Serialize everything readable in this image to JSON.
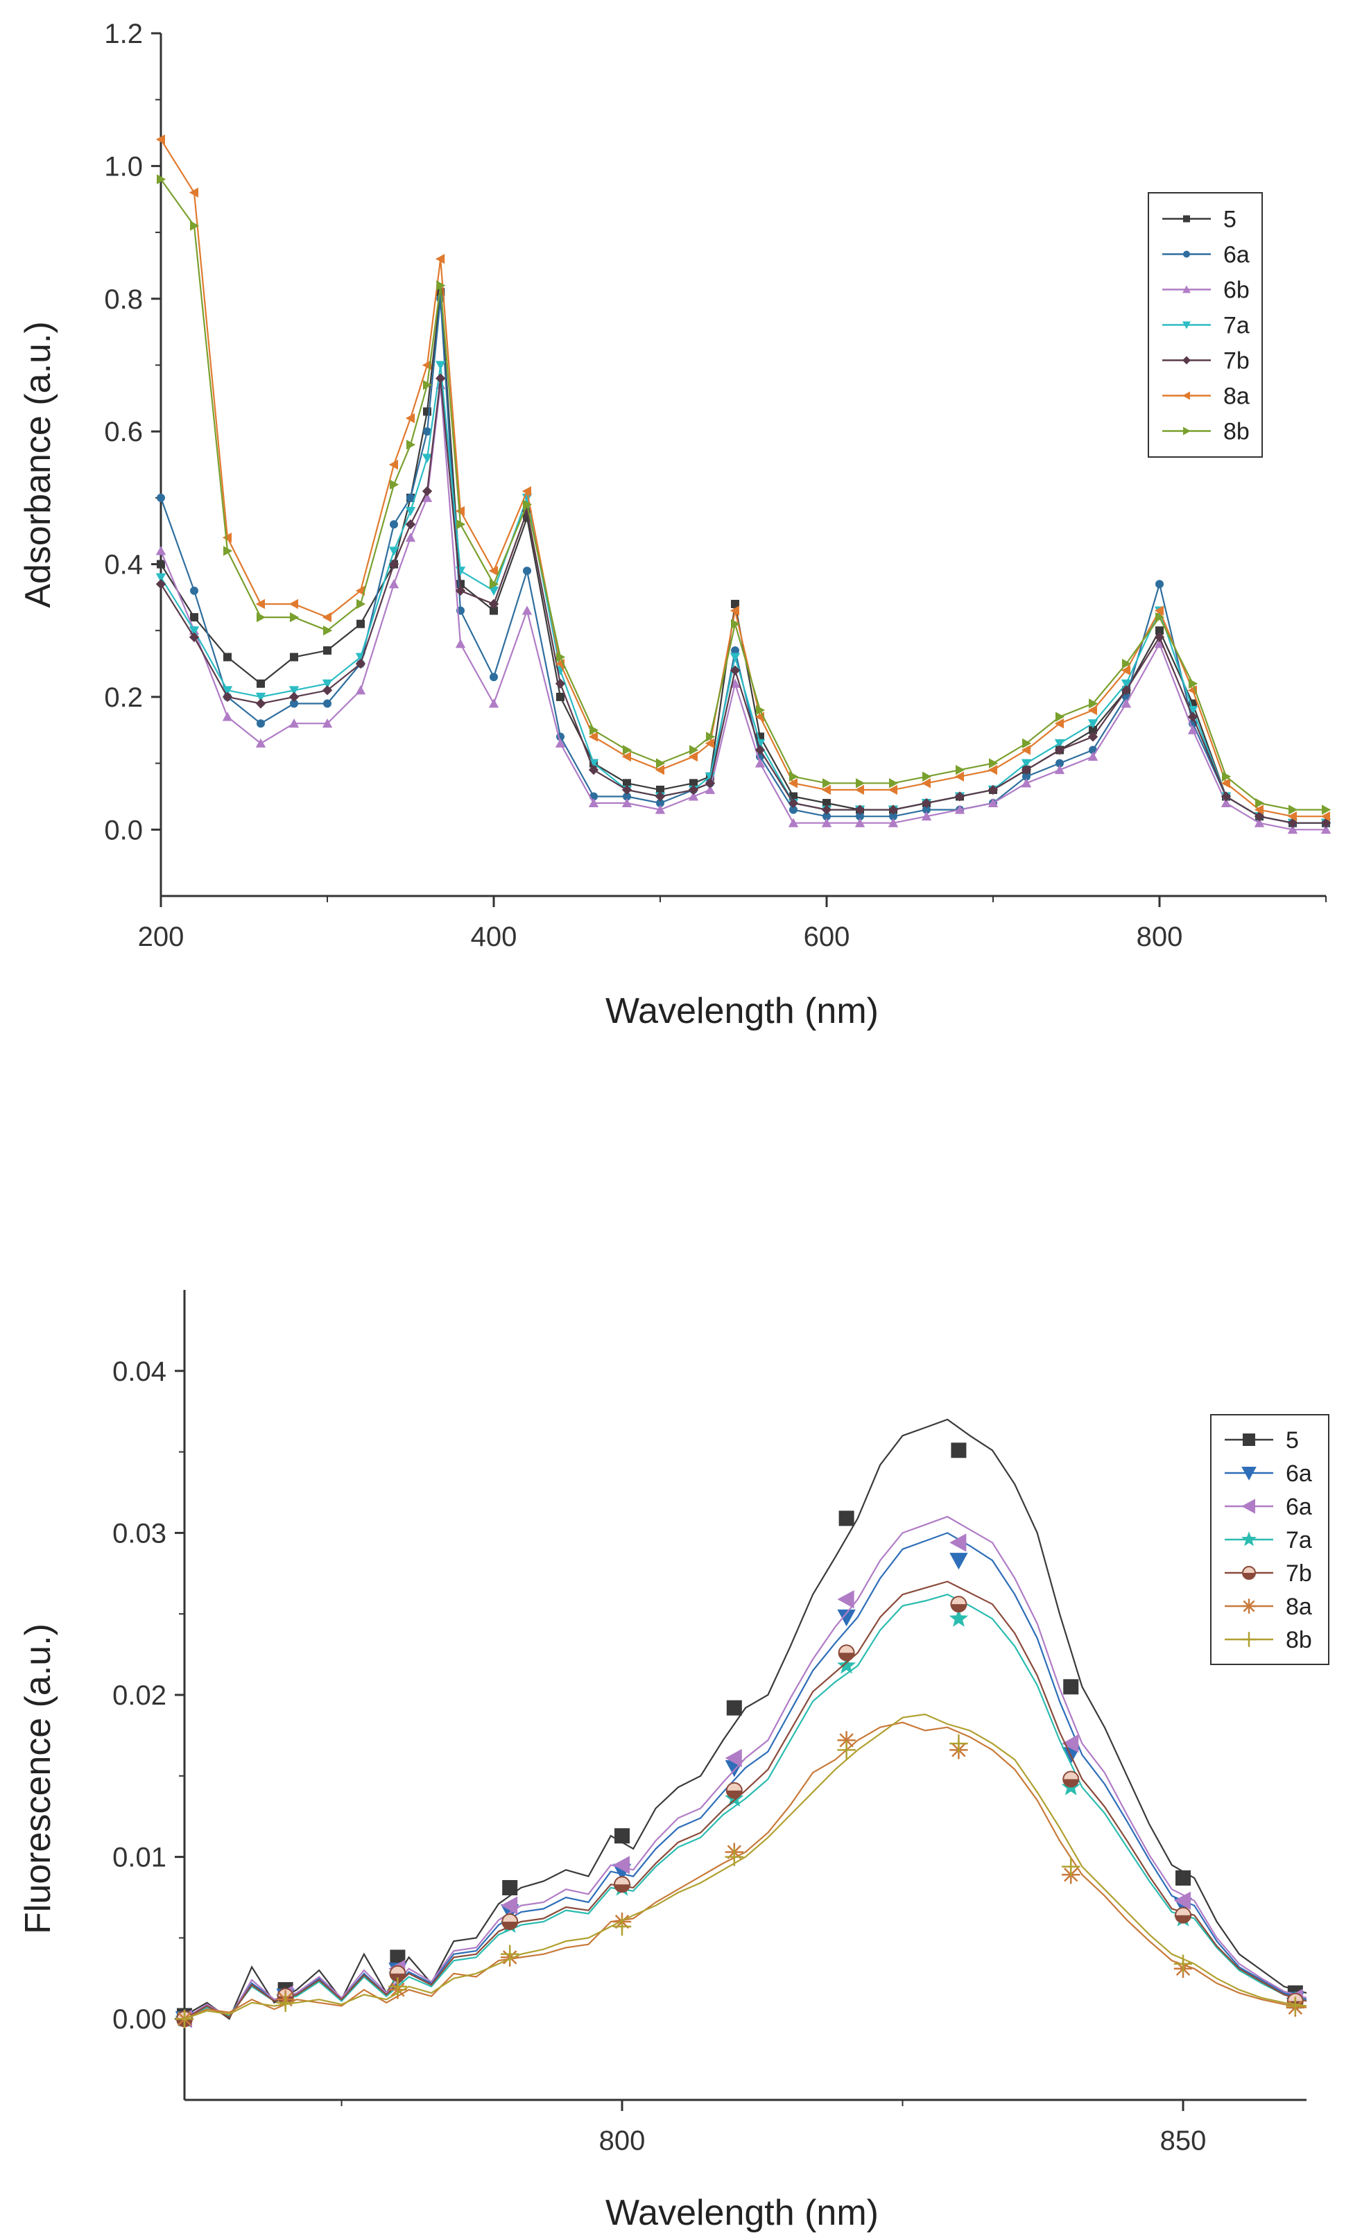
{
  "chart_data": [
    {
      "type": "line",
      "title": "",
      "xlabel": "Wavelength (nm)",
      "ylabel": "Adsorbance (a.u.)",
      "xlim": [
        200,
        900
      ],
      "ylim": [
        -0.1,
        1.2
      ],
      "x_ticks": [
        200,
        400,
        600,
        800
      ],
      "y_ticks": [
        0.0,
        0.2,
        0.4,
        0.6,
        0.8,
        1.0,
        1.2
      ],
      "y_tick_labels": [
        "0.0",
        "0.2",
        "0.4",
        "0.6",
        "0.8",
        "1.0",
        "1.2"
      ],
      "legend_position": "top-right",
      "x": [
        200,
        220,
        240,
        260,
        280,
        300,
        320,
        340,
        350,
        360,
        368,
        380,
        400,
        420,
        440,
        460,
        480,
        500,
        520,
        530,
        545,
        560,
        580,
        600,
        620,
        640,
        660,
        680,
        700,
        720,
        740,
        760,
        780,
        800,
        820,
        840,
        860,
        880,
        900
      ],
      "series": [
        {
          "name": "5",
          "color": "#3a3a3a",
          "marker": "square",
          "values": [
            0.4,
            0.32,
            0.26,
            0.22,
            0.26,
            0.27,
            0.31,
            0.4,
            0.5,
            0.63,
            0.81,
            0.37,
            0.33,
            0.47,
            0.2,
            0.1,
            0.07,
            0.06,
            0.07,
            0.08,
            0.34,
            0.14,
            0.05,
            0.04,
            0.03,
            0.03,
            0.04,
            0.05,
            0.06,
            0.09,
            0.12,
            0.15,
            0.21,
            0.3,
            0.19,
            0.05,
            0.02,
            0.01,
            0.01
          ]
        },
        {
          "name": "6a",
          "color": "#2e6e9e",
          "marker": "circle",
          "values": [
            0.5,
            0.36,
            0.2,
            0.16,
            0.19,
            0.19,
            0.25,
            0.46,
            0.5,
            0.6,
            0.8,
            0.33,
            0.23,
            0.39,
            0.14,
            0.05,
            0.05,
            0.04,
            0.06,
            0.07,
            0.27,
            0.11,
            0.03,
            0.02,
            0.02,
            0.02,
            0.03,
            0.03,
            0.04,
            0.08,
            0.1,
            0.12,
            0.2,
            0.37,
            0.16,
            0.05,
            0.02,
            0.01,
            0.01
          ]
        },
        {
          "name": "6b",
          "color": "#b07cc6",
          "marker": "triangle-up",
          "values": [
            0.42,
            0.3,
            0.17,
            0.13,
            0.16,
            0.16,
            0.21,
            0.37,
            0.44,
            0.5,
            0.67,
            0.28,
            0.19,
            0.33,
            0.13,
            0.04,
            0.04,
            0.03,
            0.05,
            0.06,
            0.22,
            0.1,
            0.01,
            0.01,
            0.01,
            0.01,
            0.02,
            0.03,
            0.04,
            0.07,
            0.09,
            0.11,
            0.19,
            0.28,
            0.15,
            0.04,
            0.01,
            0.0,
            0.0
          ]
        },
        {
          "name": "7a",
          "color": "#2bbcc4",
          "marker": "triangle-down",
          "values": [
            0.38,
            0.3,
            0.21,
            0.2,
            0.21,
            0.22,
            0.26,
            0.42,
            0.48,
            0.56,
            0.7,
            0.39,
            0.36,
            0.5,
            0.24,
            0.1,
            0.06,
            0.05,
            0.06,
            0.08,
            0.26,
            0.13,
            0.04,
            0.03,
            0.03,
            0.03,
            0.04,
            0.05,
            0.06,
            0.1,
            0.13,
            0.16,
            0.22,
            0.33,
            0.18,
            0.05,
            0.02,
            0.01,
            0.01
          ]
        },
        {
          "name": "7b",
          "color": "#5a3a4a",
          "marker": "diamond",
          "values": [
            0.37,
            0.29,
            0.2,
            0.19,
            0.2,
            0.21,
            0.25,
            0.4,
            0.46,
            0.51,
            0.68,
            0.36,
            0.34,
            0.48,
            0.22,
            0.09,
            0.06,
            0.05,
            0.06,
            0.07,
            0.24,
            0.12,
            0.04,
            0.03,
            0.03,
            0.03,
            0.04,
            0.05,
            0.06,
            0.09,
            0.12,
            0.14,
            0.21,
            0.29,
            0.17,
            0.05,
            0.02,
            0.01,
            0.01
          ]
        },
        {
          "name": "8a",
          "color": "#e07a2e",
          "marker": "triangle-left",
          "values": [
            1.04,
            0.96,
            0.44,
            0.34,
            0.34,
            0.32,
            0.36,
            0.55,
            0.62,
            0.7,
            0.86,
            0.48,
            0.39,
            0.51,
            0.25,
            0.14,
            0.11,
            0.09,
            0.11,
            0.13,
            0.33,
            0.17,
            0.07,
            0.06,
            0.06,
            0.06,
            0.07,
            0.08,
            0.09,
            0.12,
            0.16,
            0.18,
            0.24,
            0.33,
            0.21,
            0.07,
            0.03,
            0.02,
            0.02
          ]
        },
        {
          "name": "8b",
          "color": "#7aa02e",
          "marker": "triangle-right",
          "values": [
            0.98,
            0.91,
            0.42,
            0.32,
            0.32,
            0.3,
            0.34,
            0.52,
            0.58,
            0.67,
            0.82,
            0.46,
            0.37,
            0.49,
            0.26,
            0.15,
            0.12,
            0.1,
            0.12,
            0.14,
            0.31,
            0.18,
            0.08,
            0.07,
            0.07,
            0.07,
            0.08,
            0.09,
            0.1,
            0.13,
            0.17,
            0.19,
            0.25,
            0.32,
            0.22,
            0.08,
            0.04,
            0.03,
            0.03
          ]
        }
      ]
    },
    {
      "type": "line",
      "title": "",
      "xlabel": "Wavelength (nm)",
      "ylabel": "Fluorescence (a.u.)",
      "xlim": [
        761,
        861
      ],
      "ylim": [
        -0.005,
        0.045
      ],
      "x_ticks": [
        800,
        850
      ],
      "y_ticks": [
        0.0,
        0.01,
        0.02,
        0.03,
        0.04
      ],
      "y_tick_labels": [
        "0.00",
        "0.01",
        "0.02",
        "0.03",
        "0.04"
      ],
      "legend_position": "right",
      "marker_x": [
        761,
        770,
        780,
        790,
        800,
        810,
        820,
        830,
        840,
        850,
        860
      ],
      "x": [
        761,
        763,
        765,
        767,
        769,
        771,
        773,
        775,
        777,
        779,
        781,
        783,
        785,
        787,
        789,
        791,
        793,
        795,
        797,
        799,
        801,
        803,
        805,
        807,
        809,
        811,
        813,
        815,
        817,
        819,
        821,
        823,
        825,
        827,
        829,
        831,
        833,
        835,
        837,
        839,
        841,
        843,
        845,
        847,
        849,
        851,
        853,
        855,
        857,
        859,
        861
      ],
      "series": [
        {
          "name": "5",
          "color": "#3a3a3a",
          "marker": "square",
          "marker_values": [
            0.0002,
            0.0018,
            0.0038,
            0.0081,
            0.0113,
            0.0192,
            0.0309,
            0.0351,
            0.0205,
            0.0087,
            0.0016
          ],
          "values": [
            0.0002,
            0.001,
            0.0,
            0.0032,
            0.001,
            0.0018,
            0.003,
            0.0012,
            0.004,
            0.0016,
            0.0038,
            0.0022,
            0.0048,
            0.005,
            0.0071,
            0.0081,
            0.0085,
            0.0092,
            0.0088,
            0.0113,
            0.0105,
            0.013,
            0.0143,
            0.015,
            0.0172,
            0.0192,
            0.02,
            0.023,
            0.0262,
            0.0285,
            0.0309,
            0.0342,
            0.036,
            0.0365,
            0.037,
            0.036,
            0.0351,
            0.033,
            0.03,
            0.025,
            0.0205,
            0.018,
            0.015,
            0.012,
            0.0095,
            0.0087,
            0.006,
            0.004,
            0.003,
            0.002,
            0.0016
          ]
        },
        {
          "name": "6a",
          "color": "#2e6eb8",
          "marker": "triangle-down",
          "values": [
            0.0,
            0.0008,
            0.0002,
            0.0022,
            0.0012,
            0.0015,
            0.0025,
            0.0012,
            0.0028,
            0.0015,
            0.0029,
            0.0022,
            0.004,
            0.0042,
            0.0058,
            0.0066,
            0.0068,
            0.0075,
            0.0072,
            0.0091,
            0.0088,
            0.0105,
            0.0118,
            0.0124,
            0.014,
            0.0155,
            0.0165,
            0.019,
            0.0215,
            0.0232,
            0.0248,
            0.0272,
            0.029,
            0.0295,
            0.03,
            0.0292,
            0.0283,
            0.0262,
            0.0235,
            0.0196,
            0.0163,
            0.0145,
            0.0122,
            0.0098,
            0.0076,
            0.007,
            0.0048,
            0.0032,
            0.0024,
            0.0016,
            0.0012
          ],
          "marker_values": [
            0.0,
            0.0014,
            0.003,
            0.0066,
            0.0091,
            0.0155,
            0.0248,
            0.0283,
            0.0163,
            0.007,
            0.0012
          ]
        },
        {
          "name": "6a",
          "color": "#b07cc6",
          "marker": "triangle-left",
          "values": [
            0.0,
            0.0009,
            0.0001,
            0.0024,
            0.0012,
            0.0016,
            0.0026,
            0.0013,
            0.003,
            0.0016,
            0.0031,
            0.0023,
            0.0042,
            0.0044,
            0.0061,
            0.007,
            0.0072,
            0.008,
            0.0077,
            0.0095,
            0.0092,
            0.011,
            0.0124,
            0.013,
            0.0146,
            0.0161,
            0.0172,
            0.0198,
            0.0222,
            0.0242,
            0.0259,
            0.0283,
            0.03,
            0.0305,
            0.031,
            0.0302,
            0.0294,
            0.0272,
            0.0244,
            0.0204,
            0.017,
            0.0152,
            0.0126,
            0.0101,
            0.008,
            0.0073,
            0.005,
            0.0034,
            0.0025,
            0.0017,
            0.0013
          ],
          "marker_values": [
            0.0,
            0.0015,
            0.0031,
            0.007,
            0.0095,
            0.0161,
            0.0259,
            0.0294,
            0.017,
            0.0073,
            0.0013
          ]
        },
        {
          "name": "7a",
          "color": "#2bbcb0",
          "marker": "star",
          "values": [
            0.0,
            0.0007,
            0.0002,
            0.002,
            0.0011,
            0.0014,
            0.0023,
            0.0011,
            0.0026,
            0.0014,
            0.0026,
            0.002,
            0.0036,
            0.0038,
            0.0052,
            0.0058,
            0.006,
            0.0067,
            0.0065,
            0.0081,
            0.0079,
            0.0094,
            0.0106,
            0.0112,
            0.0126,
            0.0136,
            0.0148,
            0.0172,
            0.0196,
            0.0208,
            0.0218,
            0.024,
            0.0255,
            0.0258,
            0.0262,
            0.0255,
            0.0247,
            0.023,
            0.0206,
            0.0172,
            0.0143,
            0.0127,
            0.0106,
            0.0085,
            0.0066,
            0.0062,
            0.0044,
            0.003,
            0.0022,
            0.0015,
            0.0011
          ],
          "marker_values": [
            0.0,
            0.0013,
            0.0027,
            0.0058,
            0.0081,
            0.0136,
            0.0218,
            0.0247,
            0.0143,
            0.0062,
            0.0011
          ]
        },
        {
          "name": "7b",
          "color": "#8a4a3a",
          "marker": "circle-half",
          "values": [
            0.0,
            0.0008,
            0.0001,
            0.0021,
            0.0011,
            0.0015,
            0.0024,
            0.0012,
            0.0027,
            0.0015,
            0.0028,
            0.0021,
            0.0038,
            0.004,
            0.0054,
            0.006,
            0.0062,
            0.0069,
            0.0067,
            0.0083,
            0.0081,
            0.0096,
            0.0109,
            0.0115,
            0.0129,
            0.0141,
            0.0154,
            0.0178,
            0.0202,
            0.0214,
            0.0226,
            0.0248,
            0.0262,
            0.0266,
            0.027,
            0.0263,
            0.0256,
            0.0238,
            0.0212,
            0.0177,
            0.0148,
            0.0131,
            0.011,
            0.0088,
            0.0068,
            0.0064,
            0.0045,
            0.0031,
            0.0023,
            0.0015,
            0.0011
          ],
          "marker_values": [
            0.0,
            0.0014,
            0.0028,
            0.006,
            0.0083,
            0.0141,
            0.0226,
            0.0256,
            0.0148,
            0.0064,
            0.0011
          ]
        },
        {
          "name": "8a",
          "color": "#c87a3a",
          "marker": "asterisk",
          "values": [
            0.0,
            0.0006,
            0.0004,
            0.0012,
            0.0006,
            0.0012,
            0.001,
            0.0008,
            0.0018,
            0.001,
            0.0018,
            0.0014,
            0.0028,
            0.0026,
            0.0036,
            0.0038,
            0.004,
            0.0044,
            0.0046,
            0.006,
            0.0062,
            0.0072,
            0.008,
            0.0088,
            0.0096,
            0.0103,
            0.0115,
            0.0132,
            0.0152,
            0.016,
            0.0172,
            0.018,
            0.0183,
            0.0178,
            0.018,
            0.0174,
            0.0166,
            0.0154,
            0.0135,
            0.011,
            0.0089,
            0.0076,
            0.0061,
            0.0048,
            0.0036,
            0.0031,
            0.0022,
            0.0016,
            0.0012,
            0.0009,
            0.0007
          ],
          "marker_values": [
            0.0,
            0.0012,
            0.0018,
            0.0038,
            0.006,
            0.0103,
            0.0172,
            0.0166,
            0.0089,
            0.0031,
            0.0007
          ]
        },
        {
          "name": "8b",
          "color": "#b0a030",
          "marker": "plus",
          "values": [
            0.0,
            0.0005,
            0.0003,
            0.001,
            0.0008,
            0.001,
            0.0012,
            0.0009,
            0.0015,
            0.0012,
            0.002,
            0.0016,
            0.0025,
            0.0028,
            0.0034,
            0.004,
            0.0043,
            0.0048,
            0.005,
            0.0057,
            0.0064,
            0.007,
            0.0078,
            0.0084,
            0.0092,
            0.01,
            0.0112,
            0.0126,
            0.014,
            0.0154,
            0.0166,
            0.0176,
            0.0186,
            0.0188,
            0.0182,
            0.0178,
            0.017,
            0.016,
            0.014,
            0.0118,
            0.0094,
            0.008,
            0.0066,
            0.0052,
            0.004,
            0.0034,
            0.0025,
            0.0018,
            0.0013,
            0.001,
            0.0008
          ],
          "marker_values": [
            0.0,
            0.001,
            0.002,
            0.004,
            0.0057,
            0.01,
            0.0166,
            0.017,
            0.0094,
            0.0034,
            0.0008
          ]
        }
      ]
    }
  ]
}
